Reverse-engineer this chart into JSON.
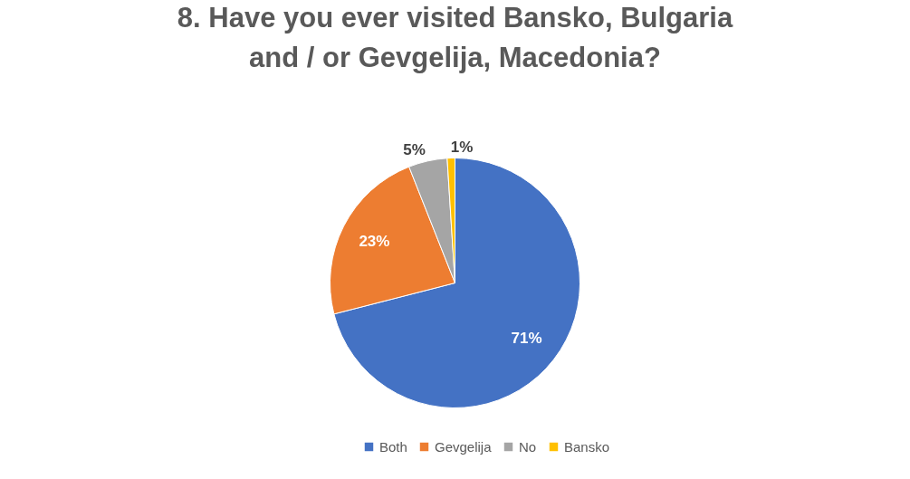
{
  "chart_data": {
    "type": "pie",
    "title": "8. Have you ever visited Bansko, Bulgaria and / or Gevgelija, Macedonia?",
    "categories": [
      "Both",
      "Gevgelija",
      "No",
      "Bansko"
    ],
    "values": [
      71,
      23,
      5,
      1
    ],
    "colors": [
      "#4472c4",
      "#ed7d31",
      "#a5a5a5",
      "#ffc000"
    ],
    "value_labels": [
      "71%",
      "23%",
      "5%",
      "1%"
    ],
    "legend": "bottom"
  }
}
